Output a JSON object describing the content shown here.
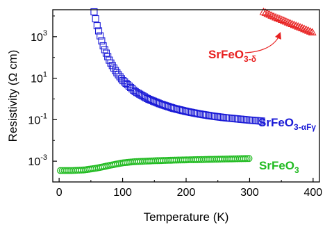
{
  "chart_data": {
    "type": "scatter",
    "xlabel": "Temperature (K)",
    "ylabel_prefix": "Resistivity (",
    "ylabel_omega": "Ω",
    "ylabel_suffix": " cm)",
    "xlim": [
      -10,
      410
    ],
    "ylim_log10": [
      -4,
      4.3
    ],
    "y_scale": "log",
    "x_ticks": [
      0,
      100,
      200,
      300,
      400
    ],
    "x_tick_labels": [
      "0",
      "100",
      "200",
      "300",
      "400"
    ],
    "y_ticks_log10": [
      -3,
      -1,
      1,
      3
    ],
    "y_tick_labels": [
      {
        "base": "10",
        "exp": "-3"
      },
      {
        "base": "10",
        "exp": "-1"
      },
      {
        "base": "10",
        "exp": "1"
      },
      {
        "base": "10",
        "exp": "3"
      }
    ],
    "grid": false,
    "series": [
      {
        "label_main": "SrFeO",
        "label_sub": "3-αF",
        "label_sub2": "γ",
        "color": "#1a1ad6",
        "marker": "square",
        "curve": [
          [
            55,
            4.2
          ],
          [
            60,
            3.5
          ],
          [
            70,
            2.5
          ],
          [
            80,
            1.8
          ],
          [
            90,
            1.3
          ],
          [
            100,
            0.9
          ],
          [
            120,
            0.35
          ],
          [
            140,
            0.0
          ],
          [
            160,
            -0.25
          ],
          [
            180,
            -0.45
          ],
          [
            200,
            -0.6
          ],
          [
            220,
            -0.72
          ],
          [
            240,
            -0.82
          ],
          [
            260,
            -0.9
          ],
          [
            280,
            -0.96
          ],
          [
            300,
            -1.02
          ],
          [
            320,
            -1.07
          ]
        ]
      },
      {
        "label_main": "SrFeO",
        "label_sub": "3-δ",
        "label_sub2": "",
        "color": "#e82020",
        "marker": "triangle",
        "curve": [
          [
            322,
            4.2
          ],
          [
            340,
            3.95
          ],
          [
            360,
            3.7
          ],
          [
            380,
            3.45
          ],
          [
            400,
            3.2
          ]
        ]
      },
      {
        "label_main": "SrFeO",
        "label_sub": "3",
        "label_sub2": "",
        "color": "#22bb22",
        "marker": "circle",
        "curve": [
          [
            2,
            -3.45
          ],
          [
            20,
            -3.45
          ],
          [
            40,
            -3.42
          ],
          [
            60,
            -3.33
          ],
          [
            80,
            -3.2
          ],
          [
            100,
            -3.08
          ],
          [
            120,
            -3.02
          ],
          [
            150,
            -2.98
          ],
          [
            180,
            -2.95
          ],
          [
            210,
            -2.93
          ],
          [
            240,
            -2.91
          ],
          [
            270,
            -2.89
          ],
          [
            300,
            -2.87
          ]
        ]
      }
    ]
  }
}
